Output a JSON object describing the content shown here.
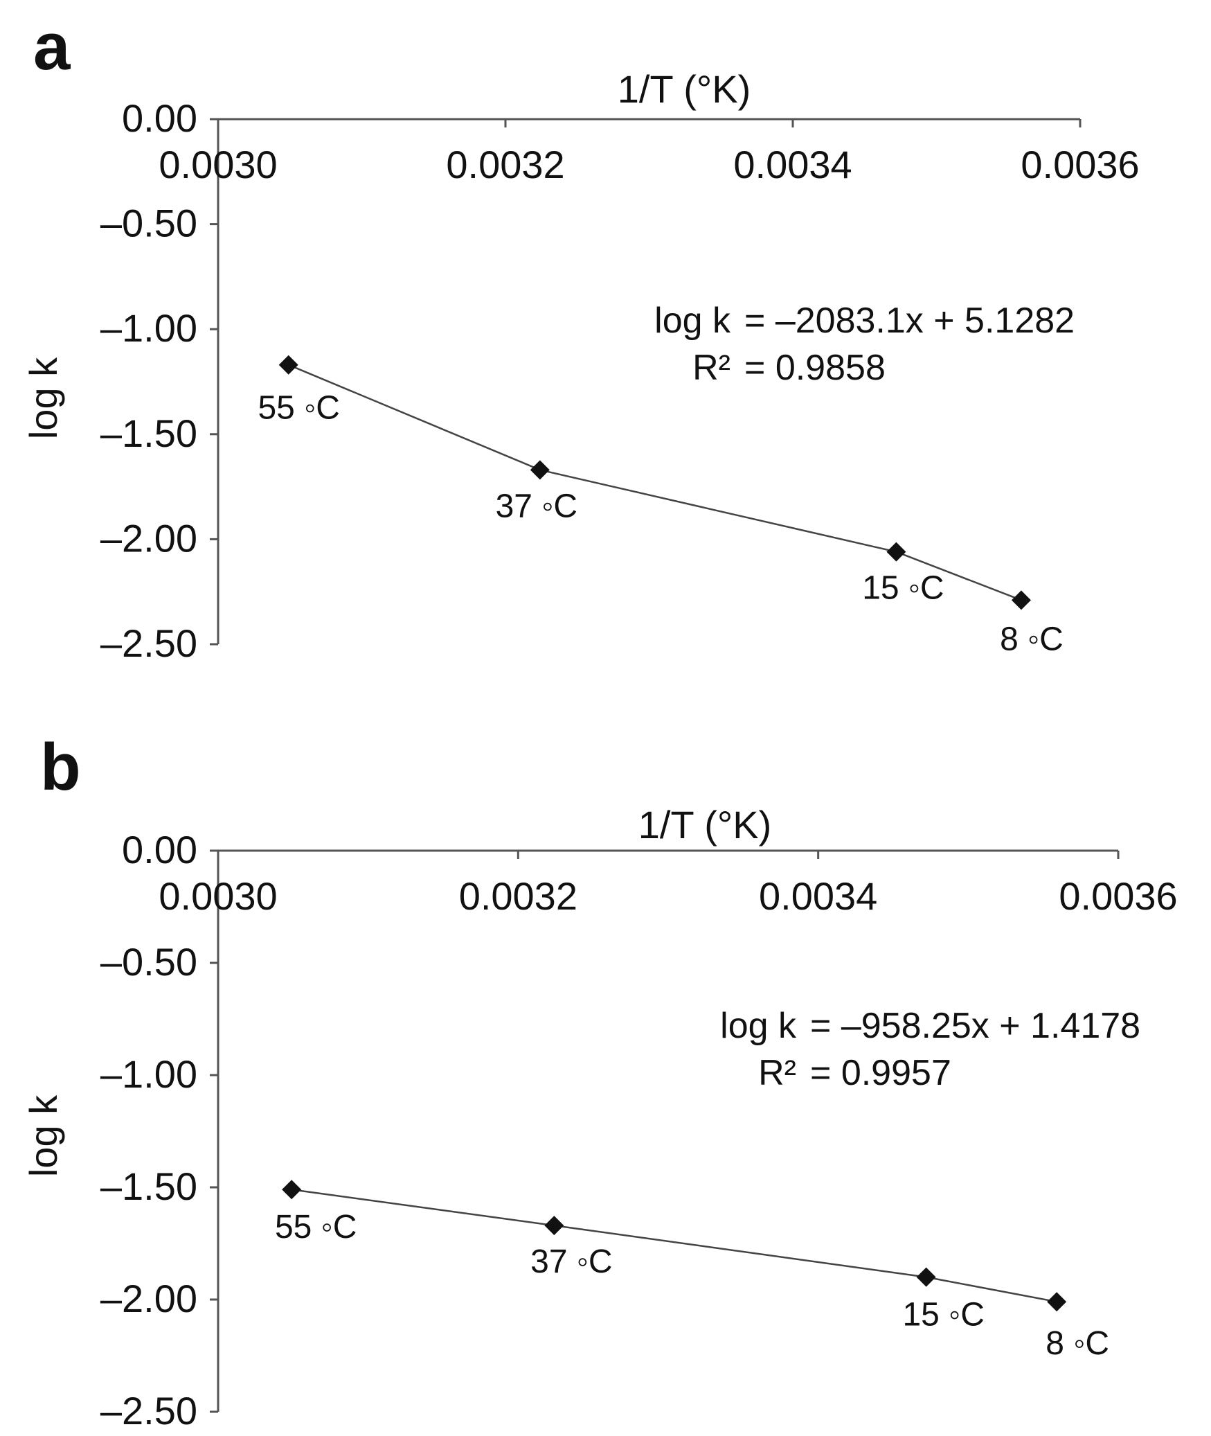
{
  "chart_data": [
    {
      "type": "line",
      "panel_label": "a",
      "title": "",
      "xlabel": "1/T (°K)",
      "ylabel": "log k",
      "xlim": [
        0.003,
        0.0036
      ],
      "ylim": [
        -2.5,
        0.0
      ],
      "x_ticks": [
        "0.0030",
        "0.0032",
        "0.0034",
        "0.0036"
      ],
      "y_ticks": [
        "0.00",
        "–0.50",
        "–1.00",
        "–1.50",
        "–2.00",
        "–2.50"
      ],
      "x_axis_position": "top",
      "grid": false,
      "series": [
        {
          "name": "log k",
          "marker": "diamond",
          "color": "#111111",
          "points": [
            {
              "x": 0.003049,
              "y": -1.17,
              "label": "55 ◦C"
            },
            {
              "x": 0.003224,
              "y": -1.67,
              "label": "37 ◦C"
            },
            {
              "x": 0.003472,
              "y": -2.06,
              "label": "15 ◦C"
            },
            {
              "x": 0.003559,
              "y": -2.29,
              "label": "8 ◦C"
            }
          ]
        }
      ],
      "equation": {
        "lhs1": "log k",
        "rhs1": "= –2083.1x + 5.1282",
        "lhs2": "R²",
        "rhs2": "= 0.9858"
      }
    },
    {
      "type": "line",
      "panel_label": "b",
      "title": "",
      "xlabel": "1/T (°K)",
      "ylabel": "log k",
      "xlim": [
        0.003,
        0.0036
      ],
      "ylim": [
        -2.5,
        0.0
      ],
      "x_ticks": [
        "0.0030",
        "0.0032",
        "0.0034",
        "0.0036"
      ],
      "y_ticks": [
        "0.00",
        "–0.50",
        "–1.00",
        "–1.50",
        "–2.00",
        "–2.50"
      ],
      "x_axis_position": "top",
      "grid": false,
      "series": [
        {
          "name": "log k",
          "marker": "diamond",
          "color": "#111111",
          "points": [
            {
              "x": 0.003049,
              "y": -1.51,
              "label": "55 ◦C"
            },
            {
              "x": 0.003224,
              "y": -1.67,
              "label": "37 ◦C"
            },
            {
              "x": 0.003472,
              "y": -1.9,
              "label": "15 ◦C"
            },
            {
              "x": 0.003559,
              "y": -2.01,
              "label": "8 ◦C"
            }
          ]
        }
      ],
      "equation": {
        "lhs1": "log k",
        "rhs1": "= –958.25x + 1.4178",
        "lhs2": "R²",
        "rhs2": "= 0.9957"
      }
    }
  ]
}
